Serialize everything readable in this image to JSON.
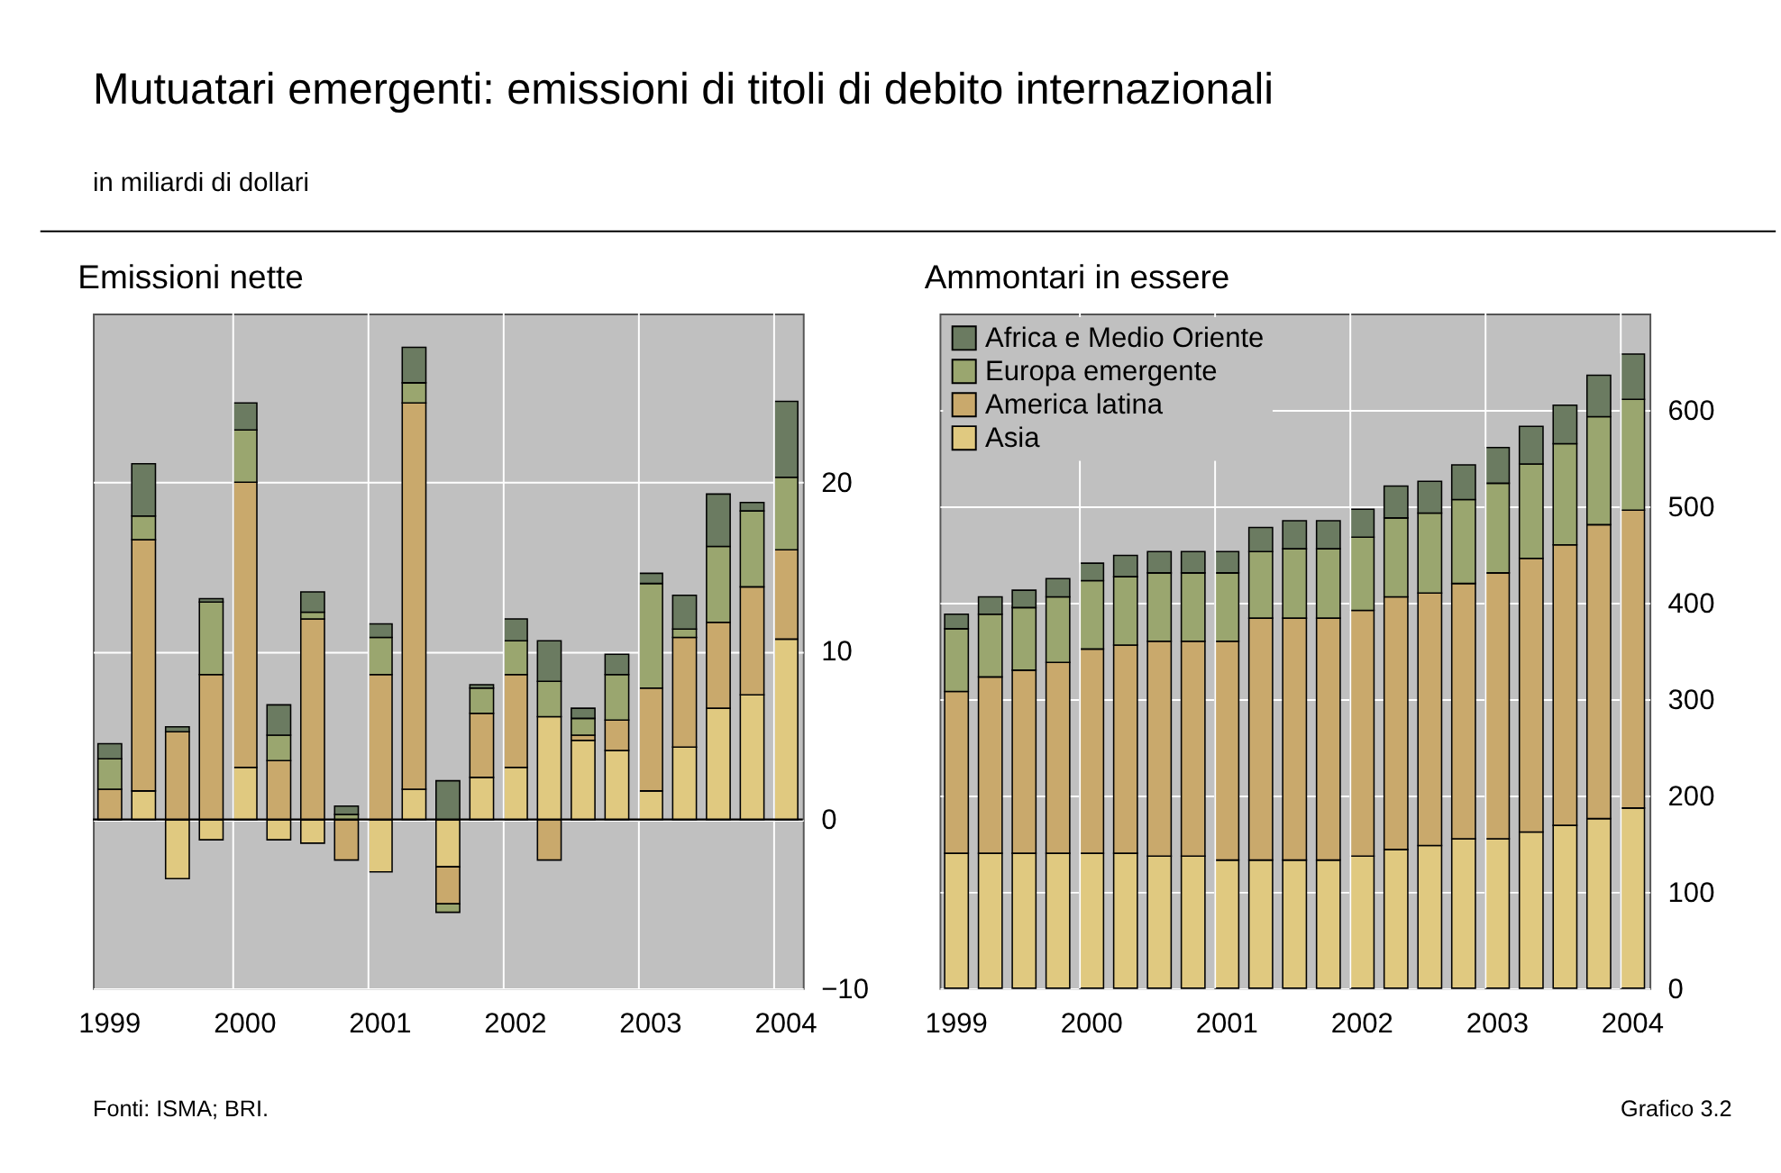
{
  "chart_data": [
    {
      "type": "bar",
      "stacked": true,
      "title": "Emissioni nette",
      "annotations": [
        "Mutuatari emergenti: emissioni di titoli di debito internazionali",
        "in miliardi di dollari",
        "Fonti: ISMA; BRI."
      ],
      "categories": [
        "1999",
        null,
        null,
        null,
        "2000",
        null,
        null,
        null,
        "2001",
        null,
        null,
        null,
        "2002",
        null,
        null,
        null,
        "2003",
        null,
        null,
        null,
        "2004"
      ],
      "series": [
        {
          "color": "#e0c980",
          "values": [
            0,
            1.7,
            -3.5,
            -1.2,
            3.1,
            -1.2,
            -1.4,
            0,
            -3.1,
            1.8,
            -2.8,
            2.5,
            3.1,
            6.1,
            4.7,
            4.1,
            1.7,
            4.3,
            6.6,
            7.4,
            10.7
          ]
        },
        {
          "color": "#c9a96c",
          "values": [
            1.8,
            14.9,
            5.2,
            8.6,
            16.9,
            3.5,
            11.9,
            -2.4,
            8.6,
            22.9,
            -2.2,
            3.8,
            5.5,
            -2.4,
            0.3,
            1.8,
            6.1,
            6.5,
            5.1,
            6.4,
            5.3
          ]
        },
        {
          "color": "#9aa66f",
          "values": [
            1.8,
            1.4,
            0,
            4.3,
            3.1,
            1.5,
            0.4,
            0.3,
            2.2,
            1.2,
            -0.5,
            1.5,
            2.0,
            2.1,
            1.0,
            2.7,
            6.2,
            0.5,
            4.5,
            4.5,
            4.3
          ]
        },
        {
          "color": "#6b7b61",
          "values": [
            0.9,
            3.1,
            0.3,
            0.2,
            1.6,
            1.8,
            1.2,
            0.5,
            0.8,
            2.1,
            2.3,
            0.2,
            1.3,
            2.4,
            0.6,
            1.2,
            0.6,
            2.0,
            3.1,
            0.5,
            4.5
          ]
        }
      ],
      "ylim": [
        -10,
        30
      ],
      "yticks": [
        -10,
        0,
        10,
        20
      ],
      "grid": true,
      "legend": false,
      "ref_lines": [
        {
          "axis": "y",
          "value": 0,
          "color": "#000000"
        }
      ]
    },
    {
      "type": "bar",
      "stacked": true,
      "title": "Ammontari in essere",
      "annotations": [
        "Grafico 3.2"
      ],
      "categories": [
        "1999",
        null,
        null,
        null,
        "2000",
        null,
        null,
        null,
        "2001",
        null,
        null,
        null,
        "2002",
        null,
        null,
        null,
        "2003",
        null,
        null,
        null,
        "2004"
      ],
      "series": [
        {
          "name": "Asia",
          "color": "#e0c980",
          "values": [
            140,
            140,
            140,
            140,
            140,
            140,
            137,
            137,
            133,
            133,
            133,
            133,
            137,
            144,
            148,
            155,
            155,
            162,
            169,
            176,
            187
          ]
        },
        {
          "name": "America latina",
          "color": "#c9a96c",
          "values": [
            168,
            183,
            190,
            198,
            212,
            216,
            223,
            223,
            227,
            251,
            251,
            251,
            255,
            262,
            262,
            265,
            276,
            284,
            291,
            305,
            309
          ]
        },
        {
          "name": "Europa emergente",
          "color": "#9aa66f",
          "values": [
            65,
            65,
            65,
            68,
            71,
            71,
            71,
            71,
            71,
            69,
            72,
            72,
            76,
            82,
            83,
            87,
            93,
            98,
            105,
            112,
            115
          ]
        },
        {
          "name": "Africa e Medio Oriente",
          "color": "#6b7b61",
          "values": [
            15,
            18,
            18,
            19,
            18,
            22,
            22,
            22,
            22,
            25,
            29,
            29,
            29,
            33,
            33,
            36,
            37,
            39,
            40,
            43,
            47
          ]
        }
      ],
      "ylim": [
        0,
        700
      ],
      "yticks": [
        0,
        100,
        200,
        300,
        400,
        500,
        600
      ],
      "grid": true,
      "legend": "top left"
    }
  ]
}
